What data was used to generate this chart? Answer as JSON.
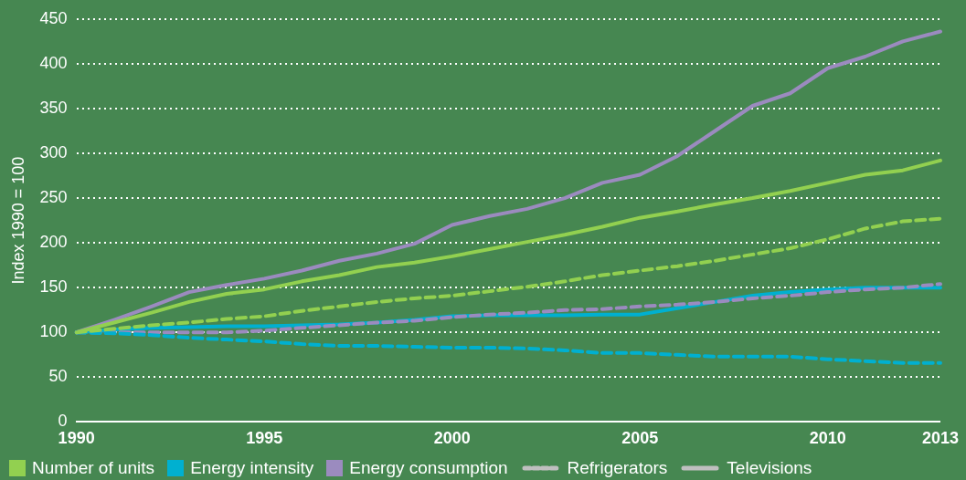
{
  "chart_data": {
    "type": "line",
    "ylabel": "Index 1990 = 100",
    "categories": [
      "1990",
      null,
      null,
      null,
      null,
      "1995",
      null,
      null,
      null,
      null,
      "2000",
      null,
      null,
      null,
      null,
      "2005",
      null,
      null,
      null,
      null,
      "2010",
      null,
      null,
      "2013"
    ],
    "series": [
      {
        "color": "#92d050",
        "line_style": "dashed",
        "values": [
          100,
          104,
          108,
          111,
          115,
          118,
          124,
          129,
          134,
          138,
          141,
          146,
          151,
          157,
          164,
          169,
          174,
          180,
          187,
          194,
          204,
          216,
          224,
          227
        ]
      },
      {
        "color": "#00b0d0",
        "line_style": "dashed",
        "values": [
          100,
          99,
          97,
          94,
          92,
          90,
          87,
          85,
          85,
          84,
          83,
          83,
          82,
          80,
          77,
          77,
          75,
          73,
          73,
          73,
          70,
          68,
          66,
          66
        ]
      },
      {
        "color": "#9b8bbf",
        "line_style": "dashed",
        "values": [
          100,
          100,
          100,
          100,
          100,
          102,
          105,
          108,
          111,
          113,
          117,
          120,
          122,
          125,
          126,
          129,
          131,
          134,
          138,
          141,
          145,
          148,
          150,
          154
        ]
      },
      {
        "name": "Number of units",
        "color": "#92d050",
        "line_style": "solid",
        "values": [
          100,
          111,
          122,
          134,
          143,
          148,
          157,
          164,
          173,
          178,
          185,
          193,
          201,
          209,
          218,
          228,
          235,
          243,
          250,
          258,
          267,
          276,
          281,
          292
        ]
      },
      {
        "name": "Energy intensity",
        "color": "#00b0d0",
        "line_style": "solid",
        "values": [
          100,
          103,
          105,
          106,
          107,
          107,
          108,
          109,
          111,
          114,
          118,
          119,
          119,
          119,
          120,
          120,
          127,
          134,
          141,
          145,
          148,
          150,
          150,
          150
        ]
      },
      {
        "name": "Energy consumption",
        "color": "#9b8bbf",
        "line_style": "solid",
        "values": [
          100,
          114,
          129,
          145,
          153,
          160,
          169,
          180,
          188,
          199,
          220,
          230,
          238,
          250,
          267,
          276,
          297,
          325,
          353,
          367,
          395,
          408,
          425,
          436
        ]
      }
    ],
    "annotations": [
      "Refrigerators",
      "Televisions"
    ],
    "ylim": [
      0,
      450
    ],
    "yticks": [
      0,
      50,
      100,
      150,
      200,
      250,
      300,
      350,
      400,
      450
    ],
    "grid": "y",
    "legend": "bottom",
    "marker": "none"
  }
}
